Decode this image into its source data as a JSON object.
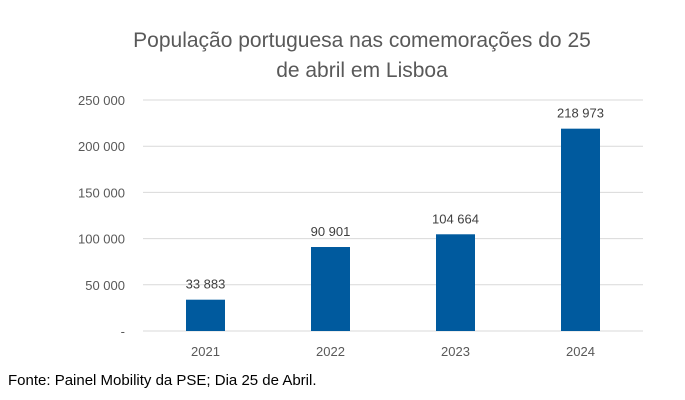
{
  "chart_data": {
    "type": "bar",
    "title_lines": [
      "População portuguesa nas comemorações do 25",
      "de abril em Lisboa"
    ],
    "categories": [
      "2021",
      "2022",
      "2023",
      "2024"
    ],
    "values": [
      33883,
      90901,
      104664,
      218973
    ],
    "value_labels": [
      "33 883",
      "90 901",
      "104 664",
      "218 973"
    ],
    "y_ticks": [
      0,
      50000,
      100000,
      150000,
      200000,
      250000
    ],
    "y_tick_labels": [
      "-",
      "50 000",
      "100 000",
      "150 000",
      "200 000",
      "250 000"
    ],
    "ylim": [
      0,
      250000
    ],
    "grid": true,
    "legend": "none",
    "bar_color": "#005a9e"
  },
  "source": "Fonte: Painel Mobility da PSE; Dia 25 de Abril."
}
